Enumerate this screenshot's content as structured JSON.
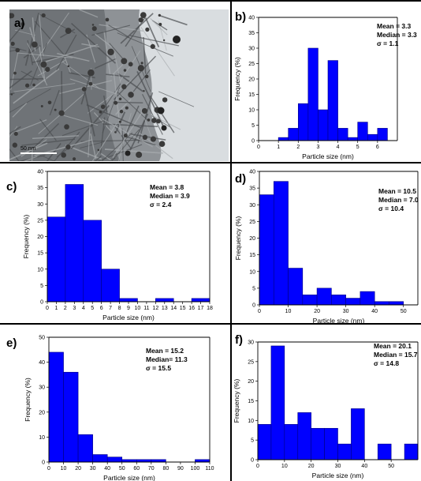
{
  "panels": [
    {
      "letter": "a)",
      "kind": "image",
      "scale_bar": "50 nm",
      "image_description_colors": {
        "background": "#d9dde0",
        "dark": "#3a3a3a"
      }
    },
    {
      "letter": "b)",
      "kind": "chart",
      "stats": [
        "Mean = 3.3",
        "Median = 3.3",
        "σ = 1.1"
      ]
    },
    {
      "letter": "c)",
      "kind": "chart",
      "stats": [
        "Mean = 3.8",
        "Median = 3.9",
        "σ = 2.4"
      ]
    },
    {
      "letter": "d)",
      "kind": "chart",
      "stats": [
        "Mean = 10.5",
        "Median = 7.0",
        "σ = 10.4"
      ]
    },
    {
      "letter": "e)",
      "kind": "chart",
      "stats": [
        "Mean = 15.2",
        "Median= 11.3",
        "σ = 15.5"
      ]
    },
    {
      "letter": "f)",
      "kind": "chart",
      "stats": [
        "Mean = 20.1",
        "Median = 15.7",
        "σ = 14.8"
      ]
    }
  ],
  "colors": {
    "bar_fill": "#0000ff",
    "bar_stroke": "#000080"
  },
  "chart_data": [
    {
      "panel": "b)",
      "type": "bar",
      "xlabel": "Particle size (nm)",
      "ylabel": "Frequency (%)",
      "xlim": [
        0,
        7
      ],
      "ylim": [
        0,
        40
      ],
      "xticks": [
        0,
        1,
        2,
        3,
        4,
        5,
        6
      ],
      "yticks": [
        0,
        5,
        10,
        15,
        20,
        25,
        30,
        35,
        40
      ],
      "bin_width": 0.5,
      "bins": [
        {
          "x": 1.25,
          "y": 1
        },
        {
          "x": 1.75,
          "y": 4
        },
        {
          "x": 2.25,
          "y": 12
        },
        {
          "x": 2.75,
          "y": 30
        },
        {
          "x": 3.25,
          "y": 10
        },
        {
          "x": 3.75,
          "y": 26
        },
        {
          "x": 4.25,
          "y": 4
        },
        {
          "x": 4.75,
          "y": 1
        },
        {
          "x": 5.25,
          "y": 6
        },
        {
          "x": 5.75,
          "y": 2
        },
        {
          "x": 6.25,
          "y": 4
        }
      ]
    },
    {
      "panel": "c)",
      "type": "bar",
      "xlabel": "Particle size (nm)",
      "ylabel": "Frequency (%)",
      "xlim": [
        0,
        18
      ],
      "ylim": [
        0,
        40
      ],
      "xticks": [
        0,
        1,
        2,
        3,
        4,
        5,
        6,
        7,
        8,
        9,
        10,
        11,
        12,
        13,
        14,
        15,
        16,
        17,
        18
      ],
      "yticks": [
        0,
        5,
        10,
        15,
        20,
        25,
        30,
        35,
        40
      ],
      "bin_width": 2,
      "bins": [
        {
          "x": 1,
          "y": 26
        },
        {
          "x": 3,
          "y": 36
        },
        {
          "x": 5,
          "y": 25
        },
        {
          "x": 7,
          "y": 10
        },
        {
          "x": 9,
          "y": 1
        },
        {
          "x": 11,
          "y": 0
        },
        {
          "x": 13,
          "y": 1
        },
        {
          "x": 15,
          "y": 0
        },
        {
          "x": 17,
          "y": 1
        }
      ]
    },
    {
      "panel": "d)",
      "type": "bar",
      "xlabel": "Particle size (nm)",
      "ylabel": "Frequency (%)",
      "xlim": [
        0,
        55
      ],
      "ylim": [
        0,
        40
      ],
      "xticks": [
        0,
        10,
        20,
        30,
        40,
        50
      ],
      "yticks": [
        0,
        5,
        10,
        15,
        20,
        25,
        30,
        35,
        40
      ],
      "bin_width": 5,
      "bins": [
        {
          "x": 2.5,
          "y": 33
        },
        {
          "x": 7.5,
          "y": 37
        },
        {
          "x": 12.5,
          "y": 11
        },
        {
          "x": 17.5,
          "y": 3
        },
        {
          "x": 22.5,
          "y": 5
        },
        {
          "x": 27.5,
          "y": 3
        },
        {
          "x": 32.5,
          "y": 2
        },
        {
          "x": 37.5,
          "y": 4
        },
        {
          "x": 42.5,
          "y": 1
        },
        {
          "x": 47.5,
          "y": 1
        }
      ]
    },
    {
      "panel": "e)",
      "type": "bar",
      "xlabel": "Particle size (nm)",
      "ylabel": "Frequency (%)",
      "xlim": [
        0,
        110
      ],
      "ylim": [
        0,
        50
      ],
      "xticks": [
        0,
        10,
        20,
        30,
        40,
        50,
        60,
        70,
        80,
        90,
        100,
        110
      ],
      "yticks": [
        0,
        10,
        20,
        30,
        40,
        50
      ],
      "bin_width": 10,
      "bins": [
        {
          "x": 5,
          "y": 44
        },
        {
          "x": 15,
          "y": 36
        },
        {
          "x": 25,
          "y": 11
        },
        {
          "x": 35,
          "y": 3
        },
        {
          "x": 45,
          "y": 2
        },
        {
          "x": 55,
          "y": 1
        },
        {
          "x": 65,
          "y": 1
        },
        {
          "x": 75,
          "y": 1
        },
        {
          "x": 85,
          "y": 0
        },
        {
          "x": 95,
          "y": 0
        },
        {
          "x": 105,
          "y": 1
        }
      ]
    },
    {
      "panel": "f)",
      "type": "bar",
      "xlabel": "Particle size (nm)",
      "ylabel": "Frequency (%)",
      "xlim": [
        0,
        60
      ],
      "ylim": [
        0,
        30
      ],
      "xticks": [
        0,
        10,
        20,
        30,
        40,
        50
      ],
      "yticks": [
        0,
        5,
        10,
        15,
        20,
        25,
        30
      ],
      "bin_width": 5,
      "bins": [
        {
          "x": 2.5,
          "y": 9
        },
        {
          "x": 7.5,
          "y": 29
        },
        {
          "x": 12.5,
          "y": 9
        },
        {
          "x": 17.5,
          "y": 12
        },
        {
          "x": 22.5,
          "y": 8
        },
        {
          "x": 27.5,
          "y": 8
        },
        {
          "x": 32.5,
          "y": 4
        },
        {
          "x": 37.5,
          "y": 13
        },
        {
          "x": 47.5,
          "y": 4
        },
        {
          "x": 57.5,
          "y": 4
        }
      ]
    }
  ]
}
